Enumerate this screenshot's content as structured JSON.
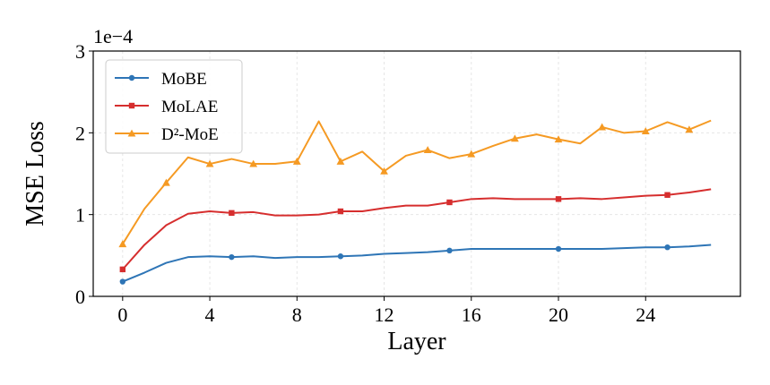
{
  "chart_data": {
    "type": "line",
    "xlabel": "Layer",
    "ylabel": "MSE Loss",
    "scale_label": "1e−4",
    "xlim": [
      -1.35,
      28.35
    ],
    "ylim": [
      0,
      3
    ],
    "xticks": [
      0,
      4,
      8,
      12,
      16,
      20,
      24
    ],
    "yticks": [
      0,
      1,
      2,
      3
    ],
    "grid": true,
    "legend_position": "top-left",
    "series": [
      {
        "name": "MoBE",
        "color": "#2e75b6",
        "marker": "circle",
        "x": [
          0,
          1,
          2,
          3,
          4,
          5,
          6,
          7,
          8,
          9,
          10,
          11,
          12,
          13,
          14,
          15,
          16,
          17,
          18,
          19,
          20,
          21,
          22,
          23,
          24,
          25,
          26,
          27
        ],
        "values": [
          0.18,
          0.29,
          0.41,
          0.48,
          0.49,
          0.48,
          0.49,
          0.47,
          0.48,
          0.48,
          0.49,
          0.5,
          0.52,
          0.53,
          0.54,
          0.56,
          0.58,
          0.58,
          0.58,
          0.58,
          0.58,
          0.58,
          0.58,
          0.59,
          0.6,
          0.6,
          0.61,
          0.63
        ],
        "marker_x": [
          0,
          5,
          10,
          15,
          20,
          25
        ]
      },
      {
        "name": "MoLAE",
        "color": "#d62e2e",
        "marker": "square",
        "x": [
          0,
          1,
          2,
          3,
          4,
          5,
          6,
          7,
          8,
          9,
          10,
          11,
          12,
          13,
          14,
          15,
          16,
          17,
          18,
          19,
          20,
          21,
          22,
          23,
          24,
          25,
          26,
          27
        ],
        "values": [
          0.33,
          0.63,
          0.87,
          1.01,
          1.04,
          1.02,
          1.03,
          0.99,
          0.99,
          1.0,
          1.04,
          1.04,
          1.08,
          1.11,
          1.11,
          1.15,
          1.19,
          1.2,
          1.19,
          1.19,
          1.19,
          1.2,
          1.19,
          1.21,
          1.23,
          1.24,
          1.27,
          1.31
        ],
        "marker_x": [
          0,
          5,
          10,
          15,
          20,
          25
        ]
      },
      {
        "name": "D²-MoE",
        "color": "#f59a23",
        "marker": "triangle",
        "x": [
          0,
          1,
          2,
          3,
          4,
          5,
          6,
          7,
          8,
          9,
          10,
          11,
          12,
          13,
          14,
          15,
          16,
          17,
          18,
          19,
          20,
          21,
          22,
          23,
          24,
          25,
          26,
          27
        ],
        "values": [
          0.64,
          1.07,
          1.39,
          1.7,
          1.62,
          1.68,
          1.62,
          1.62,
          1.65,
          2.14,
          1.65,
          1.77,
          1.53,
          1.72,
          1.79,
          1.69,
          1.74,
          1.84,
          1.93,
          1.98,
          1.92,
          1.87,
          2.07,
          2.0,
          2.02,
          2.13,
          2.04,
          2.15
        ],
        "marker_x": [
          0,
          2,
          4,
          6,
          8,
          10,
          12,
          14,
          16,
          18,
          20,
          22,
          24,
          26
        ]
      }
    ]
  }
}
